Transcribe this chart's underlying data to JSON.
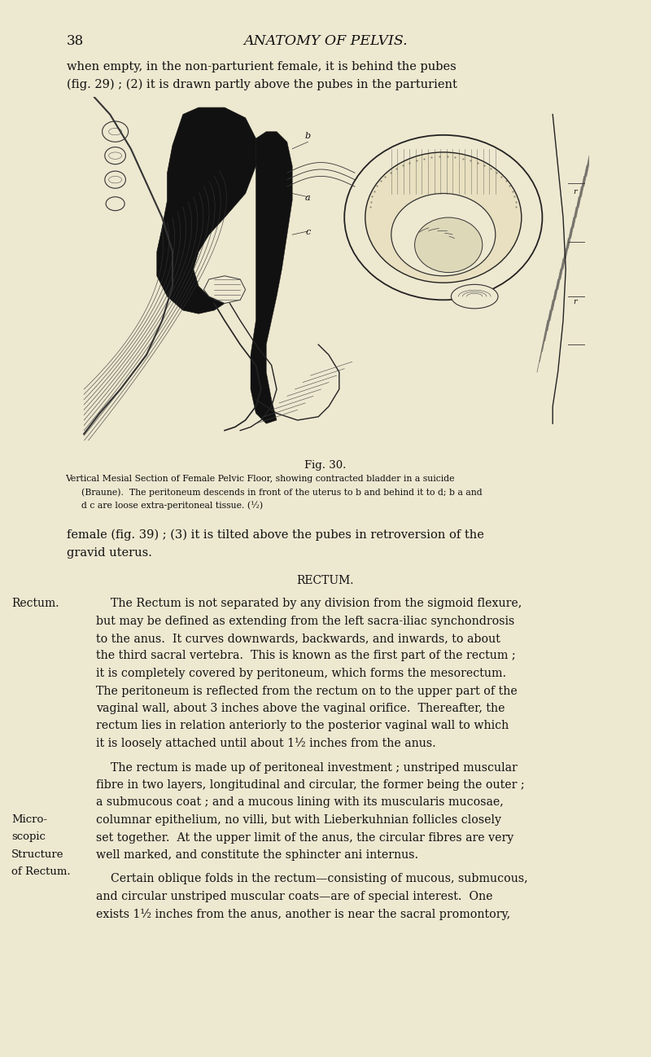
{
  "page_bg": "#ede8d0",
  "page_number": "38",
  "header_title": "ANATOMY OF PELVIS.",
  "top_text_lines": [
    "when empty, in the non-parturient female, it is behind the pubes",
    "(fig. 29) ; (2) it is drawn partly above the pubes in the parturient"
  ],
  "fig_caption_title": "Fig. 30.",
  "fig_caption_line1": "Vertical Mesial Section of Female Pelvic Floor, showing contracted bladder in a suicide",
  "fig_caption_line2": "(Braune).  The peritoneum descends in front of the uterus to b and behind it to d; b a and",
  "fig_caption_line3": "d c are loose extra-peritoneal tissue. (½)",
  "continuation_lines": [
    "female (fig. 39) ; (3) it is tilted above the pubes in retroversion of the",
    "gravid uterus."
  ],
  "section_header": "RECTUM.",
  "margin_label_rectum": "Rectum.",
  "margin_label_micro": "Micro-",
  "margin_label_scopic": "scopic",
  "margin_label_structure": "Structure",
  "margin_label_of_rectum": "of Rectum.",
  "para1_lines": [
    "    The Rectum is not separated by any division from the sigmoid flexure,",
    "but may be defined as extending from the left sacra-iliac synchondrosis",
    "to the anus.  It curves downwards, backwards, and inwards, to about",
    "the third sacral vertebra.  This is known as the first part of the rectum ;",
    "it is completely covered by peritoneum, which forms the mesorectum.",
    "The peritoneum is reflected from the rectum on to the upper part of the",
    "vaginal wall, about 3 inches above the vaginal orifice.  Thereafter, the",
    "rectum lies in relation anteriorly to the posterior vaginal wall to which",
    "it is loosely attached until about 1½ inches from the anus."
  ],
  "para2_lines": [
    "    The rectum is made up of peritoneal investment ; unstriped muscular",
    "fibre in two layers, longitudinal and circular, the former being the outer ;",
    "a submucous coat ; and a mucous lining with its muscularis mucosae,",
    "columnar epithelium, no villi, but with Lieberkuhnian follicles closely",
    "set together.  At the upper limit of the anus, the circular fibres are very",
    "well marked, and constitute the sphincter ani internus."
  ],
  "para3_lines": [
    "    Certain oblique folds in the rectum—consisting of mucous, submucous,",
    "and circular unstriped muscular coats—are of special interest.  One",
    "exists 1½ inches from the anus, another is near the sacral promontory,"
  ],
  "text_color": "#111111"
}
